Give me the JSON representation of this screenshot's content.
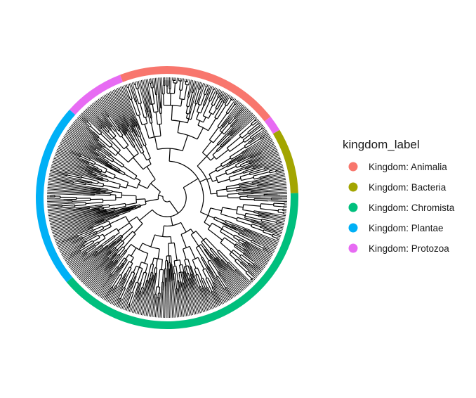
{
  "chart_data": {
    "type": "circular-phylogenetic-tree",
    "title": "",
    "legend": {
      "title": "kingdom_label",
      "placement": "right",
      "entries": [
        {
          "label": "Kingdom: Animalia",
          "color": "#F8766D"
        },
        {
          "label": "Kingdom: Bacteria",
          "color": "#A3A500"
        },
        {
          "label": "Kingdom: Chromista",
          "color": "#00BF7D"
        },
        {
          "label": "Kingdom: Plantae",
          "color": "#00B0F6"
        },
        {
          "label": "Kingdom: Protozoa",
          "color": "#E76BF3"
        }
      ]
    },
    "ring_segments": [
      {
        "kingdom": "Kingdom: Animalia",
        "start_deg": -111,
        "end_deg": -38
      },
      {
        "kingdom": "Kingdom: Protozoa",
        "start_deg": -38,
        "end_deg": -31
      },
      {
        "kingdom": "Kingdom: Bacteria",
        "start_deg": -31,
        "end_deg": -2
      },
      {
        "kingdom": "Kingdom: Chromista",
        "start_deg": -2,
        "end_deg": 140
      },
      {
        "kingdom": "Kingdom: Plantae",
        "start_deg": 140,
        "end_deg": 222
      },
      {
        "kingdom": "Kingdom: Protozoa",
        "start_deg": 222,
        "end_deg": 249
      }
    ],
    "tip_count": 480,
    "tree_color": "#000000"
  }
}
